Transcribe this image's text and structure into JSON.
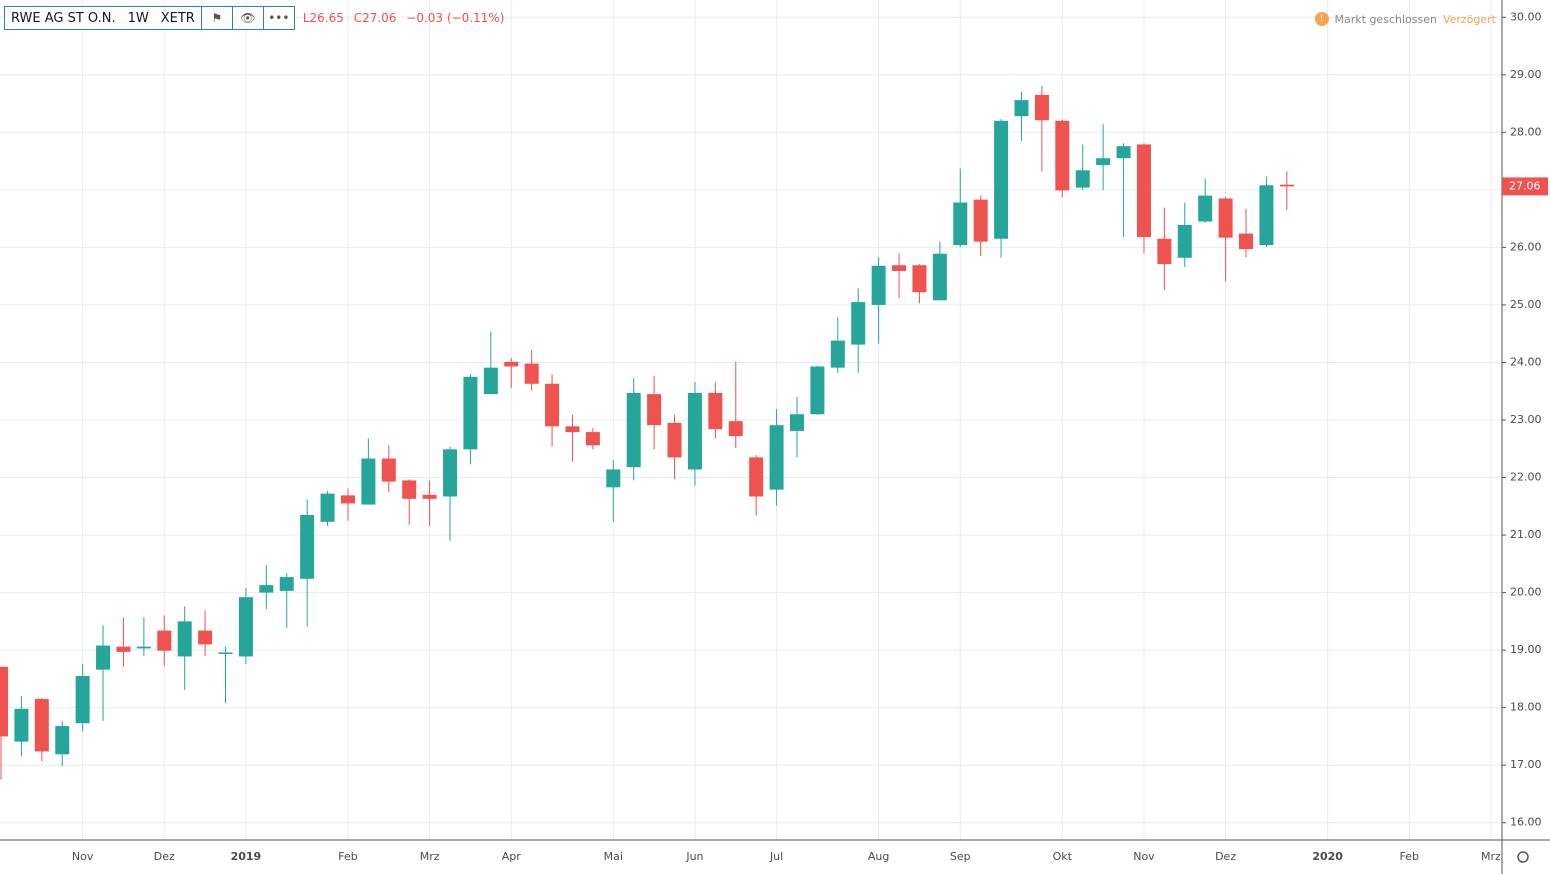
{
  "header": {
    "symbol": "RWE AG ST O.N.",
    "interval": "1W",
    "exchange": "XETR",
    "low": "L26.65",
    "close": "C27.06",
    "change": "−0.03 (−0.11%)",
    "status": "Markt geschlossen",
    "delay": "Verzögert"
  },
  "chart_data": {
    "type": "candlestick",
    "categories": [
      null,
      null,
      null,
      null,
      "Nov",
      null,
      null,
      null,
      "Dez",
      null,
      null,
      null,
      "2019",
      null,
      null,
      null,
      null,
      "Feb",
      null,
      null,
      null,
      "Mrz",
      null,
      null,
      null,
      "Apr",
      null,
      null,
      null,
      null,
      "Mai",
      null,
      null,
      null,
      "Jun",
      null,
      null,
      null,
      "Jul",
      null,
      null,
      null,
      null,
      "Aug",
      null,
      null,
      null,
      "Sep",
      null,
      null,
      null,
      null,
      "Okt",
      null,
      null,
      null,
      "Nov",
      null,
      null,
      null,
      "Dez",
      null,
      null,
      null,
      null,
      "2020",
      null,
      null,
      null,
      "Feb",
      null,
      null,
      null,
      "Mrz"
    ],
    "open": [
      18.71,
      17.41,
      18.15,
      17.19,
      17.73,
      18.66,
      19.06,
      19.03,
      19.34,
      18.89,
      19.34,
      18.95,
      18.89,
      20.0,
      20.03,
      20.24,
      21.23,
      21.69,
      21.53,
      22.33,
      21.95,
      21.7,
      21.67,
      22.49,
      23.45,
      24.01,
      23.98,
      23.63,
      22.89,
      22.79,
      21.83,
      22.18,
      23.45,
      22.95,
      22.14,
      23.47,
      22.98,
      22.35,
      21.79,
      22.81,
      23.1,
      23.91,
      24.31,
      25.0,
      25.69,
      25.69,
      25.08,
      26.04,
      26.83,
      26.15,
      28.28,
      28.65,
      28.2,
      27.04,
      27.43,
      27.55,
      27.79,
      26.15,
      25.82,
      26.45,
      26.85,
      26.24,
      26.04,
      27.09,
      null,
      null,
      null,
      null,
      null,
      null,
      null,
      null,
      null,
      null
    ],
    "high": [
      18.72,
      18.2,
      18.17,
      17.77,
      18.76,
      19.43,
      19.57,
      19.57,
      19.6,
      19.76,
      19.69,
      19.06,
      20.08,
      20.48,
      20.34,
      21.62,
      21.77,
      21.81,
      22.68,
      22.56,
      21.97,
      21.95,
      22.54,
      23.8,
      24.54,
      24.08,
      24.22,
      23.79,
      23.09,
      22.86,
      22.3,
      23.73,
      23.77,
      23.09,
      23.66,
      23.65,
      24.01,
      22.39,
      23.19,
      23.4,
      23.94,
      24.78,
      25.29,
      25.83,
      25.9,
      25.71,
      26.1,
      27.37,
      26.9,
      28.23,
      28.7,
      28.81,
      28.22,
      27.79,
      28.14,
      27.81,
      27.81,
      26.69,
      26.78,
      27.2,
      26.88,
      26.67,
      27.23,
      27.32,
      null,
      null,
      null,
      null,
      null,
      null,
      null,
      null,
      null,
      null
    ],
    "low": [
      16.75,
      17.15,
      17.07,
      16.98,
      17.59,
      17.77,
      18.71,
      18.9,
      18.73,
      18.31,
      18.9,
      18.08,
      18.76,
      19.71,
      19.39,
      19.41,
      21.16,
      21.25,
      21.53,
      21.74,
      21.18,
      21.16,
      20.9,
      22.23,
      23.45,
      23.56,
      23.51,
      22.54,
      22.28,
      22.49,
      21.23,
      21.95,
      22.49,
      21.97,
      21.86,
      22.68,
      22.51,
      21.34,
      21.51,
      22.35,
      23.09,
      23.82,
      23.82,
      24.33,
      25.12,
      25.03,
      25.08,
      26.0,
      25.85,
      25.82,
      27.85,
      27.32,
      26.87,
      27.0,
      27.0,
      26.18,
      25.9,
      25.26,
      25.66,
      26.43,
      25.41,
      25.83,
      26.01,
      26.65,
      null,
      null,
      null,
      null,
      null,
      null,
      null,
      null,
      null,
      null
    ],
    "close": [
      17.5,
      17.98,
      17.24,
      17.68,
      18.55,
      19.08,
      18.97,
      19.06,
      18.99,
      19.5,
      19.1,
      18.96,
      19.92,
      20.13,
      20.27,
      21.35,
      21.72,
      21.55,
      22.33,
      21.93,
      21.63,
      21.63,
      22.49,
      23.75,
      23.91,
      23.93,
      23.63,
      22.89,
      22.79,
      22.56,
      22.14,
      23.47,
      22.91,
      22.35,
      23.47,
      22.84,
      22.72,
      21.67,
      22.91,
      23.1,
      23.93,
      24.38,
      25.05,
      25.68,
      25.59,
      25.22,
      25.89,
      26.78,
      26.1,
      28.2,
      28.56,
      28.21,
      26.99,
      27.34,
      27.55,
      27.76,
      26.18,
      25.71,
      26.39,
      26.9,
      26.17,
      25.97,
      27.08,
      27.06,
      null,
      null,
      null,
      null,
      null,
      null,
      null,
      null,
      null,
      null
    ],
    "up_color": "#26a69a",
    "down_color": "#ef5350",
    "ylim": [
      15.7,
      30.3
    ],
    "yticks": [
      {
        "value": 16,
        "label": "16.00"
      },
      {
        "value": 17,
        "label": "17.00"
      },
      {
        "value": 18,
        "label": "18.00"
      },
      {
        "value": 19,
        "label": "19.00"
      },
      {
        "value": 20,
        "label": "20.00"
      },
      {
        "value": 21,
        "label": "21.00"
      },
      {
        "value": 22,
        "label": "22.00"
      },
      {
        "value": 23,
        "label": "23.00"
      },
      {
        "value": 24,
        "label": "24.00"
      },
      {
        "value": 25,
        "label": "25.00"
      },
      {
        "value": 26,
        "label": "26.00"
      },
      {
        "value": 27,
        "label": "27.00"
      },
      {
        "value": 28,
        "label": "28.00"
      },
      {
        "value": 29,
        "label": "29.00"
      },
      {
        "value": 30,
        "label": "30.00"
      }
    ],
    "grid": true
  }
}
